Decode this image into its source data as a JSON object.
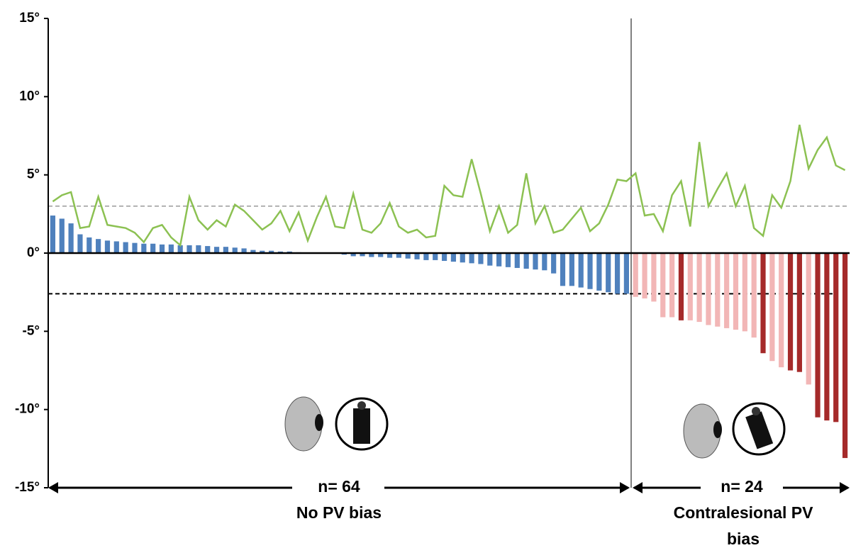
{
  "chart_data": {
    "type": "bar",
    "ylim": [
      -15,
      15
    ],
    "yticks": [
      {
        "value": 15,
        "label": "15°"
      },
      {
        "value": 10,
        "label": "10°"
      },
      {
        "value": 5,
        "label": "5°"
      },
      {
        "value": 0,
        "label": "0°"
      },
      {
        "value": -5,
        "label": "-5°"
      },
      {
        "value": -10,
        "label": "-10°"
      },
      {
        "value": -15,
        "label": "-15°"
      }
    ],
    "annotations": [
      "n= 64",
      "No PV bias",
      "n= 24",
      "Contralesional PV",
      "bias"
    ],
    "hlines": [
      {
        "value": 3,
        "color": "#999999"
      },
      {
        "value": -2.6,
        "color": "#000000"
      }
    ],
    "series": [
      {
        "type": "bar",
        "values": [
          2.4,
          2.2,
          1.9,
          1.2,
          1.0,
          0.9,
          0.8,
          0.75,
          0.7,
          0.65,
          0.6,
          0.6,
          0.55,
          0.55,
          0.5,
          0.5,
          0.5,
          0.45,
          0.4,
          0.4,
          0.35,
          0.3,
          0.2,
          0.15,
          0.15,
          0.1,
          0.1,
          0.05,
          0.02,
          0,
          0,
          -0.02,
          -0.1,
          -0.2,
          -0.2,
          -0.25,
          -0.25,
          -0.3,
          -0.3,
          -0.35,
          -0.4,
          -0.45,
          -0.45,
          -0.5,
          -0.55,
          -0.6,
          -0.65,
          -0.7,
          -0.8,
          -0.85,
          -0.9,
          -0.95,
          -1.0,
          -1.05,
          -1.1,
          -1.3,
          -2.1,
          -2.1,
          -2.2,
          -2.3,
          -2.4,
          -2.5,
          -2.6,
          -2.6,
          -2.8,
          -2.9,
          -3.1,
          -4.1,
          -4.1,
          -4.3,
          -4.3,
          -4.4,
          -4.6,
          -4.7,
          -4.8,
          -4.9,
          -5.0,
          -5.4,
          -6.4,
          -6.9,
          -7.3,
          -7.5,
          -7.6,
          -8.4,
          -10.5,
          -10.7,
          -10.8,
          -13.1
        ],
        "colors": [
          "#4f81bd",
          "#4f81bd",
          "#4f81bd",
          "#4f81bd",
          "#4f81bd",
          "#4f81bd",
          "#4f81bd",
          "#4f81bd",
          "#4f81bd",
          "#4f81bd",
          "#4f81bd",
          "#4f81bd",
          "#4f81bd",
          "#4f81bd",
          "#4f81bd",
          "#4f81bd",
          "#4f81bd",
          "#4f81bd",
          "#4f81bd",
          "#4f81bd",
          "#4f81bd",
          "#4f81bd",
          "#4f81bd",
          "#4f81bd",
          "#4f81bd",
          "#4f81bd",
          "#4f81bd",
          "#4f81bd",
          "#4f81bd",
          "#4f81bd",
          "#4f81bd",
          "#4f81bd",
          "#4f81bd",
          "#4f81bd",
          "#4f81bd",
          "#4f81bd",
          "#4f81bd",
          "#4f81bd",
          "#4f81bd",
          "#4f81bd",
          "#4f81bd",
          "#4f81bd",
          "#4f81bd",
          "#4f81bd",
          "#4f81bd",
          "#4f81bd",
          "#4f81bd",
          "#4f81bd",
          "#4f81bd",
          "#4f81bd",
          "#4f81bd",
          "#4f81bd",
          "#4f81bd",
          "#4f81bd",
          "#4f81bd",
          "#4f81bd",
          "#4f81bd",
          "#4f81bd",
          "#4f81bd",
          "#4f81bd",
          "#4f81bd",
          "#4f81bd",
          "#4f81bd",
          "#4f81bd",
          "#f2b6b6",
          "#f2b6b6",
          "#f2b6b6",
          "#f2b6b6",
          "#f2b6b6",
          "#a52a2a",
          "#f2b6b6",
          "#f2b6b6",
          "#f2b6b6",
          "#f2b6b6",
          "#f2b6b6",
          "#f2b6b6",
          "#f2b6b6",
          "#f2b6b6",
          "#a52a2a",
          "#f2b6b6",
          "#f2b6b6",
          "#a52a2a",
          "#a52a2a",
          "#f2b6b6",
          "#a52a2a",
          "#a52a2a",
          "#a52a2a",
          "#a52a2a"
        ]
      },
      {
        "type": "line",
        "color": "#8cc152",
        "values": [
          3.3,
          3.7,
          3.9,
          1.6,
          1.7,
          3.6,
          1.8,
          1.7,
          1.6,
          1.3,
          0.7,
          1.6,
          1.8,
          1.0,
          0.5,
          3.6,
          2.1,
          1.5,
          2.1,
          1.7,
          3.1,
          2.7,
          2.1,
          1.5,
          1.9,
          2.7,
          1.4,
          2.6,
          0.8,
          2.3,
          3.6,
          1.7,
          1.6,
          3.8,
          1.5,
          1.3,
          1.9,
          3.2,
          1.7,
          1.3,
          1.5,
          1.0,
          1.1,
          4.3,
          3.7,
          3.6,
          6.0,
          3.8,
          1.4,
          3.0,
          1.3,
          1.8,
          5.1,
          1.9,
          3.0,
          1.3,
          1.5,
          2.2,
          2.9,
          1.4,
          1.9,
          3.1,
          4.7,
          4.6,
          5.1,
          2.4,
          2.5,
          1.4,
          3.7,
          4.6,
          1.7,
          7.1,
          3.0,
          4.1,
          5.1,
          3.0,
          4.3,
          1.6,
          1.1,
          3.7,
          2.9,
          4.6,
          8.2,
          5.4,
          6.6,
          7.4,
          5.6,
          5.3
        ]
      }
    ]
  }
}
